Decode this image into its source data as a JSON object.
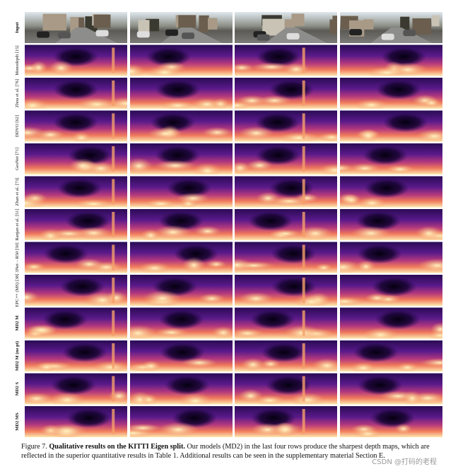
{
  "figure": {
    "rows": [
      {
        "label": "Input"
      },
      {
        "label": "Monodepth [15]"
      },
      {
        "label": "Zhou et al. [76]"
      },
      {
        "label": "DDVO [62]"
      },
      {
        "label": "GeoNet [71]"
      },
      {
        "label": "Zhan et al. [73]"
      },
      {
        "label": "Ranjan et al. [51]"
      },
      {
        "label": "3Net – R50 [50]"
      },
      {
        "label": "EPC++ (MS) [38]"
      },
      {
        "label": "MD2 M"
      },
      {
        "label": "MD2 M (no pt)"
      },
      {
        "label": "MD2 S"
      },
      {
        "label": "MD2 MS"
      }
    ],
    "caption": {
      "label": "Figure 7.",
      "bold": "Qualitative results on the KITTI Eigen split.",
      "text": "Our models (MD2) in the last four rows produce the sharpest depth maps, which are reflected in the superior quantitative results in Table 1. Additional results can be seen in the supplementary material Section E."
    },
    "watermark": "CSDN @打码的老程"
  }
}
